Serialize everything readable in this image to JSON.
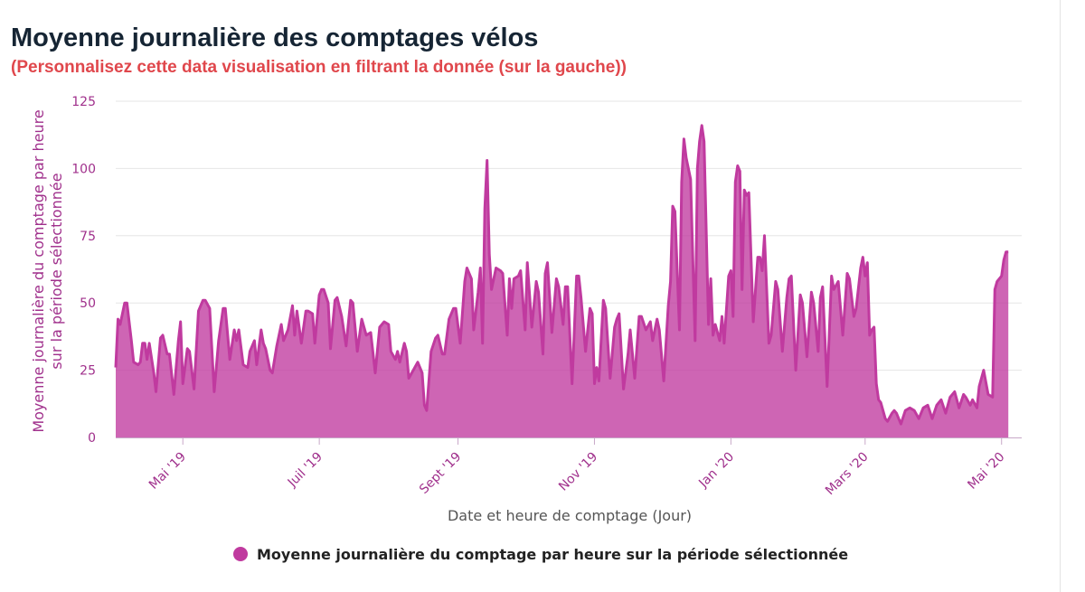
{
  "chart_data": {
    "type": "area",
    "title": "Moyenne journalière des comptages vélos",
    "subtitle": "(Personnalisez cette data visualisation en filtrant la donnée (sur la gauche))",
    "xlabel": "Date et heure de comptage (Jour)",
    "ylabel": "Moyenne journalière du comptage par heure sur la période sélectionnée",
    "ylim": [
      0,
      125
    ],
    "xlim": [
      "2019-04-01",
      "2020-05-10"
    ],
    "y_ticks": [
      "0",
      "25",
      "50",
      "75",
      "100",
      "125"
    ],
    "x_ticks": [
      {
        "date": "2019-05-01",
        "label": "Mai '19"
      },
      {
        "date": "2019-07-01",
        "label": "Juil '19"
      },
      {
        "date": "2019-09-01",
        "label": "Sept '19"
      },
      {
        "date": "2019-11-01",
        "label": "Nov '19"
      },
      {
        "date": "2020-01-01",
        "label": "Jan '20"
      },
      {
        "date": "2020-03-01",
        "label": "Mars '20"
      },
      {
        "date": "2020-05-01",
        "label": "Mai '20"
      }
    ],
    "grid": true,
    "legend_position": "bottom-center",
    "colors": {
      "series": "#c03a9f",
      "title": "#162534",
      "subtitle": "#e0474c",
      "axis": "#a0308c",
      "grid": "#e6e6e6"
    },
    "series": [
      {
        "name": "Moyenne journalière du comptage par heure sur la période sélectionnée",
        "points": [
          [
            "2019-04-01",
            26
          ],
          [
            "2019-04-02",
            44
          ],
          [
            "2019-04-03",
            42
          ],
          [
            "2019-04-05",
            50
          ],
          [
            "2019-04-06",
            50
          ],
          [
            "2019-04-08",
            36
          ],
          [
            "2019-04-09",
            28
          ],
          [
            "2019-04-11",
            27
          ],
          [
            "2019-04-12",
            28
          ],
          [
            "2019-04-13",
            35
          ],
          [
            "2019-04-14",
            35
          ],
          [
            "2019-04-15",
            29
          ],
          [
            "2019-04-16",
            35
          ],
          [
            "2019-04-18",
            24
          ],
          [
            "2019-04-19",
            17
          ],
          [
            "2019-04-21",
            37
          ],
          [
            "2019-04-22",
            38
          ],
          [
            "2019-04-24",
            31
          ],
          [
            "2019-04-25",
            31
          ],
          [
            "2019-04-27",
            16
          ],
          [
            "2019-04-29",
            36
          ],
          [
            "2019-04-30",
            43
          ],
          [
            "2019-05-01",
            20
          ],
          [
            "2019-05-03",
            33
          ],
          [
            "2019-05-04",
            32
          ],
          [
            "2019-05-06",
            18
          ],
          [
            "2019-05-08",
            47
          ],
          [
            "2019-05-10",
            51
          ],
          [
            "2019-05-11",
            51
          ],
          [
            "2019-05-13",
            48
          ],
          [
            "2019-05-15",
            17
          ],
          [
            "2019-05-17",
            36
          ],
          [
            "2019-05-19",
            48
          ],
          [
            "2019-05-20",
            48
          ],
          [
            "2019-05-22",
            29
          ],
          [
            "2019-05-24",
            40
          ],
          [
            "2019-05-25",
            36
          ],
          [
            "2019-05-26",
            40
          ],
          [
            "2019-05-28",
            27
          ],
          [
            "2019-05-30",
            26
          ],
          [
            "2019-05-31",
            32
          ],
          [
            "2019-06-02",
            36
          ],
          [
            "2019-06-03",
            27
          ],
          [
            "2019-06-05",
            40
          ],
          [
            "2019-06-06",
            35
          ],
          [
            "2019-06-07",
            33
          ],
          [
            "2019-06-09",
            25
          ],
          [
            "2019-06-10",
            24
          ],
          [
            "2019-06-12",
            34
          ],
          [
            "2019-06-14",
            42
          ],
          [
            "2019-06-15",
            36
          ],
          [
            "2019-06-17",
            40
          ],
          [
            "2019-06-19",
            49
          ],
          [
            "2019-06-20",
            38
          ],
          [
            "2019-06-21",
            47
          ],
          [
            "2019-06-23",
            35
          ],
          [
            "2019-06-25",
            47
          ],
          [
            "2019-06-26",
            47
          ],
          [
            "2019-06-28",
            46
          ],
          [
            "2019-06-29",
            35
          ],
          [
            "2019-07-01",
            53
          ],
          [
            "2019-07-02",
            55
          ],
          [
            "2019-07-03",
            55
          ],
          [
            "2019-07-05",
            50
          ],
          [
            "2019-07-06",
            33
          ],
          [
            "2019-07-08",
            51
          ],
          [
            "2019-07-09",
            52
          ],
          [
            "2019-07-11",
            45
          ],
          [
            "2019-07-13",
            34
          ],
          [
            "2019-07-15",
            51
          ],
          [
            "2019-07-16",
            50
          ],
          [
            "2019-07-18",
            32
          ],
          [
            "2019-07-20",
            44
          ],
          [
            "2019-07-22",
            38
          ],
          [
            "2019-07-24",
            39
          ],
          [
            "2019-07-26",
            24
          ],
          [
            "2019-07-28",
            41
          ],
          [
            "2019-07-30",
            43
          ],
          [
            "2019-08-01",
            42
          ],
          [
            "2019-08-02",
            32
          ],
          [
            "2019-08-04",
            29
          ],
          [
            "2019-08-05",
            32
          ],
          [
            "2019-08-06",
            28
          ],
          [
            "2019-08-08",
            35
          ],
          [
            "2019-08-09",
            32
          ],
          [
            "2019-08-10",
            22
          ],
          [
            "2019-08-12",
            25
          ],
          [
            "2019-08-14",
            28
          ],
          [
            "2019-08-16",
            24
          ],
          [
            "2019-08-17",
            12
          ],
          [
            "2019-08-18",
            10
          ],
          [
            "2019-08-20",
            32
          ],
          [
            "2019-08-22",
            37
          ],
          [
            "2019-08-23",
            38
          ],
          [
            "2019-08-25",
            31
          ],
          [
            "2019-08-26",
            31
          ],
          [
            "2019-08-28",
            44
          ],
          [
            "2019-08-30",
            48
          ],
          [
            "2019-08-31",
            48
          ],
          [
            "2019-09-02",
            35
          ],
          [
            "2019-09-04",
            58
          ],
          [
            "2019-09-05",
            63
          ],
          [
            "2019-09-07",
            59
          ],
          [
            "2019-09-08",
            40
          ],
          [
            "2019-09-10",
            54
          ],
          [
            "2019-09-11",
            63
          ],
          [
            "2019-09-12",
            35
          ],
          [
            "2019-09-13",
            85
          ],
          [
            "2019-09-14",
            103
          ],
          [
            "2019-09-15",
            68
          ],
          [
            "2019-09-16",
            55
          ],
          [
            "2019-09-18",
            63
          ],
          [
            "2019-09-20",
            62
          ],
          [
            "2019-09-21",
            61
          ],
          [
            "2019-09-23",
            38
          ],
          [
            "2019-09-24",
            59
          ],
          [
            "2019-09-25",
            48
          ],
          [
            "2019-09-26",
            59
          ],
          [
            "2019-09-28",
            60
          ],
          [
            "2019-09-29",
            62
          ],
          [
            "2019-10-01",
            40
          ],
          [
            "2019-10-02",
            65
          ],
          [
            "2019-10-04",
            41
          ],
          [
            "2019-10-06",
            58
          ],
          [
            "2019-10-07",
            54
          ],
          [
            "2019-10-09",
            31
          ],
          [
            "2019-10-10",
            61
          ],
          [
            "2019-10-11",
            65
          ],
          [
            "2019-10-13",
            39
          ],
          [
            "2019-10-15",
            59
          ],
          [
            "2019-10-16",
            56
          ],
          [
            "2019-10-18",
            42
          ],
          [
            "2019-10-19",
            56
          ],
          [
            "2019-10-20",
            56
          ],
          [
            "2019-10-22",
            20
          ],
          [
            "2019-10-24",
            60
          ],
          [
            "2019-10-25",
            60
          ],
          [
            "2019-10-26",
            52
          ],
          [
            "2019-10-28",
            32
          ],
          [
            "2019-10-30",
            48
          ],
          [
            "2019-10-31",
            46
          ],
          [
            "2019-11-01",
            20
          ],
          [
            "2019-11-02",
            26
          ],
          [
            "2019-11-03",
            21
          ],
          [
            "2019-11-05",
            51
          ],
          [
            "2019-11-06",
            48
          ],
          [
            "2019-11-08",
            22
          ],
          [
            "2019-11-10",
            41
          ],
          [
            "2019-11-11",
            44
          ],
          [
            "2019-11-12",
            46
          ],
          [
            "2019-11-14",
            18
          ],
          [
            "2019-11-16",
            31
          ],
          [
            "2019-11-17",
            40
          ],
          [
            "2019-11-19",
            22
          ],
          [
            "2019-11-21",
            45
          ],
          [
            "2019-11-22",
            45
          ],
          [
            "2019-11-24",
            40
          ],
          [
            "2019-11-26",
            43
          ],
          [
            "2019-11-27",
            36
          ],
          [
            "2019-11-29",
            44
          ],
          [
            "2019-11-30",
            40
          ],
          [
            "2019-12-02",
            21
          ],
          [
            "2019-12-04",
            49
          ],
          [
            "2019-12-05",
            58
          ],
          [
            "2019-12-06",
            86
          ],
          [
            "2019-12-07",
            84
          ],
          [
            "2019-12-09",
            40
          ],
          [
            "2019-12-10",
            95
          ],
          [
            "2019-12-11",
            111
          ],
          [
            "2019-12-12",
            104
          ],
          [
            "2019-12-14",
            96
          ],
          [
            "2019-12-16",
            36
          ],
          [
            "2019-12-17",
            100
          ],
          [
            "2019-12-18",
            110
          ],
          [
            "2019-12-19",
            116
          ],
          [
            "2019-12-20",
            110
          ],
          [
            "2019-12-22",
            42
          ],
          [
            "2019-12-23",
            59
          ],
          [
            "2019-12-24",
            38
          ],
          [
            "2019-12-25",
            42
          ],
          [
            "2019-12-27",
            36
          ],
          [
            "2019-12-28",
            45
          ],
          [
            "2019-12-29",
            35
          ],
          [
            "2019-12-31",
            60
          ],
          [
            "2020-01-01",
            62
          ],
          [
            "2020-01-02",
            45
          ],
          [
            "2020-01-03",
            95
          ],
          [
            "2020-01-04",
            101
          ],
          [
            "2020-01-05",
            99
          ],
          [
            "2020-01-06",
            55
          ],
          [
            "2020-01-07",
            92
          ],
          [
            "2020-01-08",
            90
          ],
          [
            "2020-01-09",
            91
          ],
          [
            "2020-01-11",
            43
          ],
          [
            "2020-01-13",
            67
          ],
          [
            "2020-01-14",
            67
          ],
          [
            "2020-01-15",
            62
          ],
          [
            "2020-01-16",
            75
          ],
          [
            "2020-01-18",
            35
          ],
          [
            "2020-01-19",
            38
          ],
          [
            "2020-01-21",
            58
          ],
          [
            "2020-01-22",
            55
          ],
          [
            "2020-01-24",
            32
          ],
          [
            "2020-01-26",
            52
          ],
          [
            "2020-01-27",
            59
          ],
          [
            "2020-01-28",
            60
          ],
          [
            "2020-01-30",
            25
          ],
          [
            "2020-02-01",
            53
          ],
          [
            "2020-02-02",
            50
          ],
          [
            "2020-02-04",
            30
          ],
          [
            "2020-02-06",
            54
          ],
          [
            "2020-02-07",
            50
          ],
          [
            "2020-02-09",
            32
          ],
          [
            "2020-02-10",
            52
          ],
          [
            "2020-02-11",
            56
          ],
          [
            "2020-02-13",
            19
          ],
          [
            "2020-02-15",
            60
          ],
          [
            "2020-02-16",
            55
          ],
          [
            "2020-02-18",
            58
          ],
          [
            "2020-02-20",
            38
          ],
          [
            "2020-02-22",
            61
          ],
          [
            "2020-02-23",
            59
          ],
          [
            "2020-02-25",
            45
          ],
          [
            "2020-02-26",
            48
          ],
          [
            "2020-02-28",
            63
          ],
          [
            "2020-02-29",
            67
          ],
          [
            "2020-03-01",
            60
          ],
          [
            "2020-03-02",
            65
          ],
          [
            "2020-03-03",
            38
          ],
          [
            "2020-03-04",
            40
          ],
          [
            "2020-03-05",
            41
          ],
          [
            "2020-03-06",
            20
          ],
          [
            "2020-03-07",
            14
          ],
          [
            "2020-03-08",
            13
          ],
          [
            "2020-03-10",
            7
          ],
          [
            "2020-03-11",
            6
          ],
          [
            "2020-03-13",
            9
          ],
          [
            "2020-03-14",
            10
          ],
          [
            "2020-03-15",
            9
          ],
          [
            "2020-03-17",
            5
          ],
          [
            "2020-03-19",
            10
          ],
          [
            "2020-03-21",
            11
          ],
          [
            "2020-03-23",
            10
          ],
          [
            "2020-03-25",
            7
          ],
          [
            "2020-03-27",
            11
          ],
          [
            "2020-03-29",
            12
          ],
          [
            "2020-03-31",
            7
          ],
          [
            "2020-04-02",
            12
          ],
          [
            "2020-04-04",
            14
          ],
          [
            "2020-04-06",
            9
          ],
          [
            "2020-04-08",
            15
          ],
          [
            "2020-04-10",
            17
          ],
          [
            "2020-04-12",
            11
          ],
          [
            "2020-04-14",
            16
          ],
          [
            "2020-04-15",
            15
          ],
          [
            "2020-04-17",
            12
          ],
          [
            "2020-04-18",
            14
          ],
          [
            "2020-04-20",
            11
          ],
          [
            "2020-04-21",
            19
          ],
          [
            "2020-04-23",
            25
          ],
          [
            "2020-04-25",
            16
          ],
          [
            "2020-04-27",
            15
          ],
          [
            "2020-04-28",
            55
          ],
          [
            "2020-04-29",
            58
          ],
          [
            "2020-05-01",
            60
          ],
          [
            "2020-05-02",
            66
          ],
          [
            "2020-05-03",
            69
          ],
          [
            "2020-05-04",
            69
          ]
        ]
      }
    ]
  }
}
